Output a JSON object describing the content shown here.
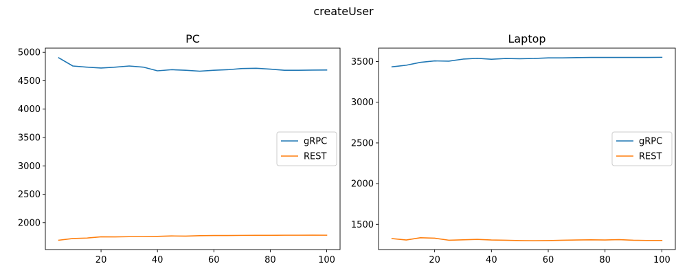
{
  "figure": {
    "suptitle": "createUser"
  },
  "chart_data": [
    {
      "type": "line",
      "title": "PC",
      "xlabel": "",
      "ylabel": "",
      "x": [
        5,
        10,
        15,
        20,
        25,
        30,
        35,
        40,
        45,
        50,
        55,
        60,
        65,
        70,
        75,
        80,
        85,
        90,
        95,
        100
      ],
      "xlim": [
        0.25,
        104.75
      ],
      "ylim": [
        1525,
        5075
      ],
      "xticks": [
        20,
        40,
        60,
        80,
        100
      ],
      "yticks": [
        2000,
        2500,
        3000,
        3500,
        4000,
        4500,
        5000
      ],
      "grid": false,
      "legend": "center right",
      "series": [
        {
          "name": "gRPC",
          "color": "#1f77b4",
          "values": [
            4905,
            4760,
            4740,
            4725,
            4740,
            4760,
            4740,
            4675,
            4695,
            4685,
            4668,
            4685,
            4695,
            4715,
            4720,
            4705,
            4685,
            4685,
            4688,
            4690
          ]
        },
        {
          "name": "REST",
          "color": "#ff7f0e",
          "values": [
            1690,
            1720,
            1728,
            1750,
            1748,
            1752,
            1752,
            1758,
            1765,
            1762,
            1770,
            1772,
            1772,
            1775,
            1776,
            1776,
            1778,
            1778,
            1779,
            1778
          ]
        }
      ]
    },
    {
      "type": "line",
      "title": "Laptop",
      "xlabel": "",
      "ylabel": "",
      "x": [
        5,
        10,
        15,
        20,
        25,
        30,
        35,
        40,
        45,
        50,
        55,
        60,
        65,
        70,
        75,
        80,
        85,
        90,
        95,
        100
      ],
      "xlim": [
        0.25,
        104.75
      ],
      "ylim": [
        1190,
        3665
      ],
      "xticks": [
        20,
        40,
        60,
        80,
        100
      ],
      "yticks": [
        1500,
        2000,
        2500,
        3000,
        3500
      ],
      "grid": false,
      "legend": "center right",
      "series": [
        {
          "name": "gRPC",
          "color": "#1f77b4",
          "values": [
            3435,
            3455,
            3490,
            3508,
            3505,
            3530,
            3540,
            3528,
            3538,
            3535,
            3538,
            3545,
            3545,
            3548,
            3550,
            3550,
            3550,
            3550,
            3550,
            3552
          ]
        },
        {
          "name": "REST",
          "color": "#ff7f0e",
          "values": [
            1325,
            1308,
            1335,
            1330,
            1305,
            1310,
            1315,
            1308,
            1305,
            1300,
            1298,
            1300,
            1305,
            1308,
            1310,
            1308,
            1312,
            1305,
            1302,
            1302
          ]
        }
      ]
    }
  ]
}
